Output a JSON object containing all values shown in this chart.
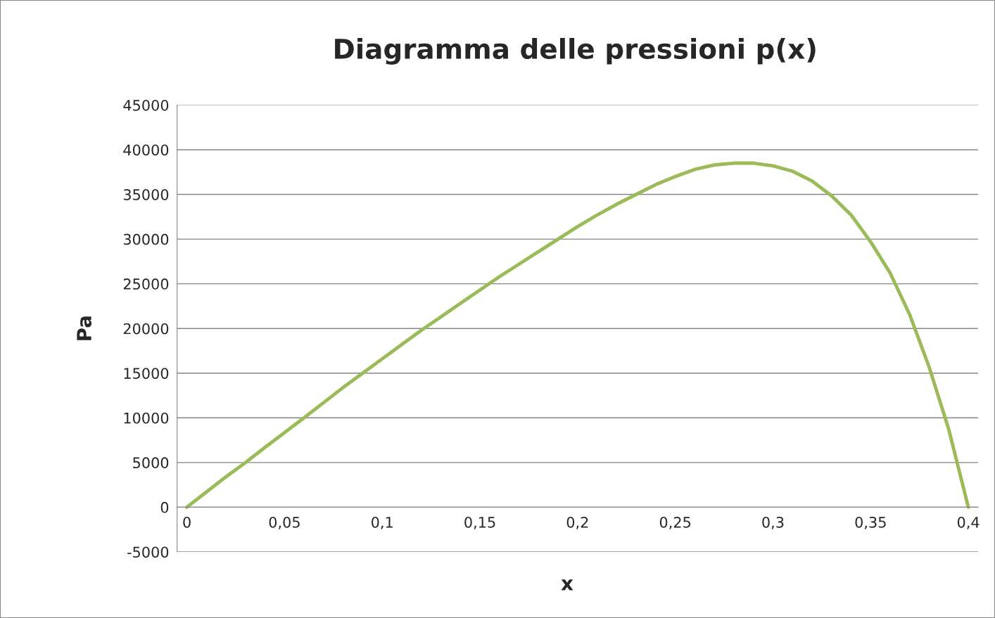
{
  "chart_data": {
    "type": "line",
    "title": "Diagramma delle pressioni p(x)",
    "xlabel": "x",
    "ylabel": "Pa",
    "x": [
      0,
      0.01,
      0.02,
      0.03,
      0.04,
      0.05,
      0.06,
      0.07,
      0.08,
      0.09,
      0.1,
      0.11,
      0.12,
      0.13,
      0.14,
      0.15,
      0.16,
      0.17,
      0.18,
      0.19,
      0.2,
      0.21,
      0.22,
      0.23,
      0.24,
      0.25,
      0.26,
      0.27,
      0.28,
      0.29,
      0.3,
      0.31,
      0.32,
      0.33,
      0.34,
      0.35,
      0.36,
      0.37,
      0.38,
      0.39,
      0.4
    ],
    "series": [
      {
        "color": "#9bbb59",
        "values": [
          0,
          1700,
          3400,
          5000,
          6700,
          8350,
          10000,
          11700,
          13400,
          15000,
          16600,
          18200,
          19800,
          21300,
          22800,
          24300,
          25800,
          27200,
          28600,
          30000,
          31400,
          32700,
          33900,
          35000,
          36100,
          37000,
          37800,
          38300,
          38500,
          38500,
          38200,
          37600,
          36500,
          34850,
          32700,
          29700,
          26200,
          21550,
          15650,
          8700,
          0
        ]
      }
    ],
    "xlim": [
      -0.005,
      0.405
    ],
    "ylim": [
      -5000,
      45000
    ],
    "xticks": [
      {
        "value": 0,
        "label": "0"
      },
      {
        "value": 0.05,
        "label": "0,05"
      },
      {
        "value": 0.1,
        "label": "0,1"
      },
      {
        "value": 0.15,
        "label": "0,15"
      },
      {
        "value": 0.2,
        "label": "0,2"
      },
      {
        "value": 0.25,
        "label": "0,25"
      },
      {
        "value": 0.3,
        "label": "0,3"
      },
      {
        "value": 0.35,
        "label": "0,35"
      },
      {
        "value": 0.4,
        "label": "0,4"
      }
    ],
    "yticks": [
      -5000,
      0,
      5000,
      10000,
      15000,
      20000,
      25000,
      30000,
      35000,
      40000,
      45000
    ],
    "grid": "y",
    "legend": false,
    "marker": "none",
    "line_style": "solid"
  }
}
